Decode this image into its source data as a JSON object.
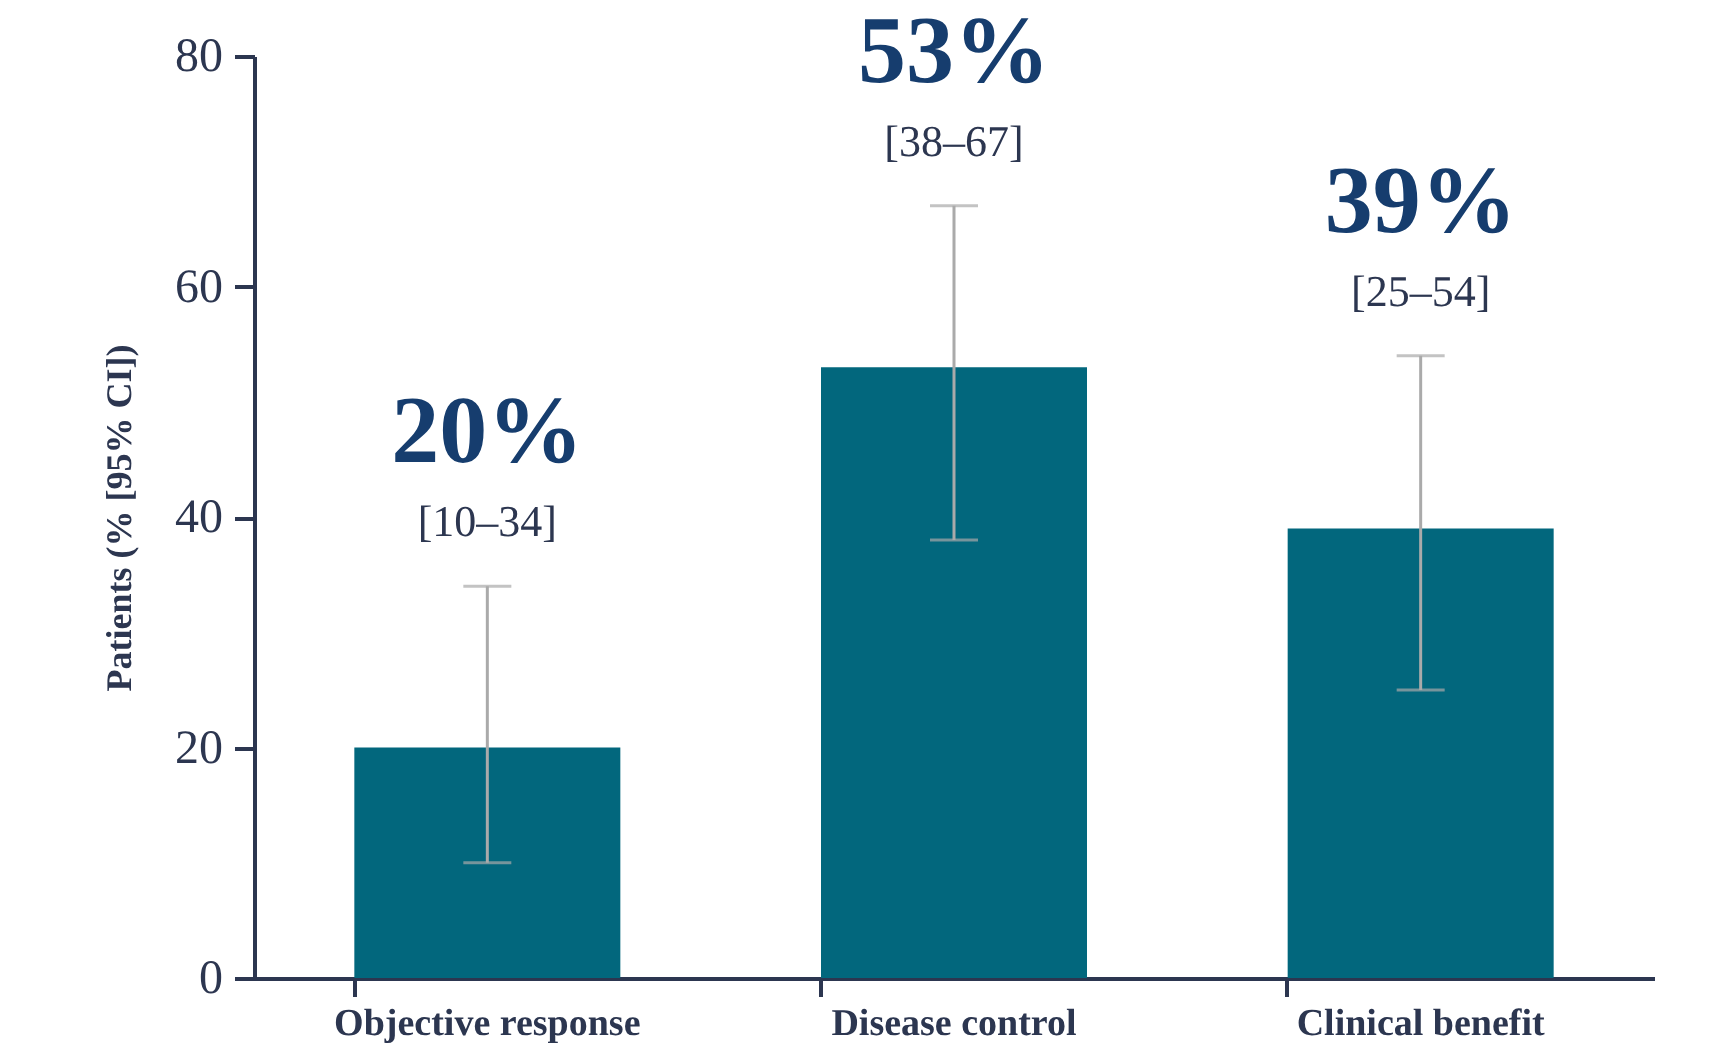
{
  "chart_data": {
    "type": "bar",
    "ylabel": "Patients (% [95% CI])",
    "categories": [
      "Objective response",
      "Disease control",
      "Clinical benefit"
    ],
    "values": [
      20,
      53,
      39
    ],
    "color": "#02677d",
    "errors": [
      [
        10,
        34
      ],
      [
        38,
        67
      ],
      [
        25,
        54
      ]
    ],
    "value_labels": [
      "20%",
      "53%",
      "39%"
    ],
    "annotations": [
      {
        "text": "[10–34]",
        "x": "Objective response",
        "y": 34
      },
      {
        "text": "[38–67]",
        "x": "Disease control",
        "y": 67
      },
      {
        "text": "[25–54]",
        "x": "Clinical benefit",
        "y": 54
      }
    ],
    "ylim": [
      0,
      80
    ],
    "yticks": [
      0,
      20,
      40,
      60,
      80
    ],
    "grid": false
  }
}
